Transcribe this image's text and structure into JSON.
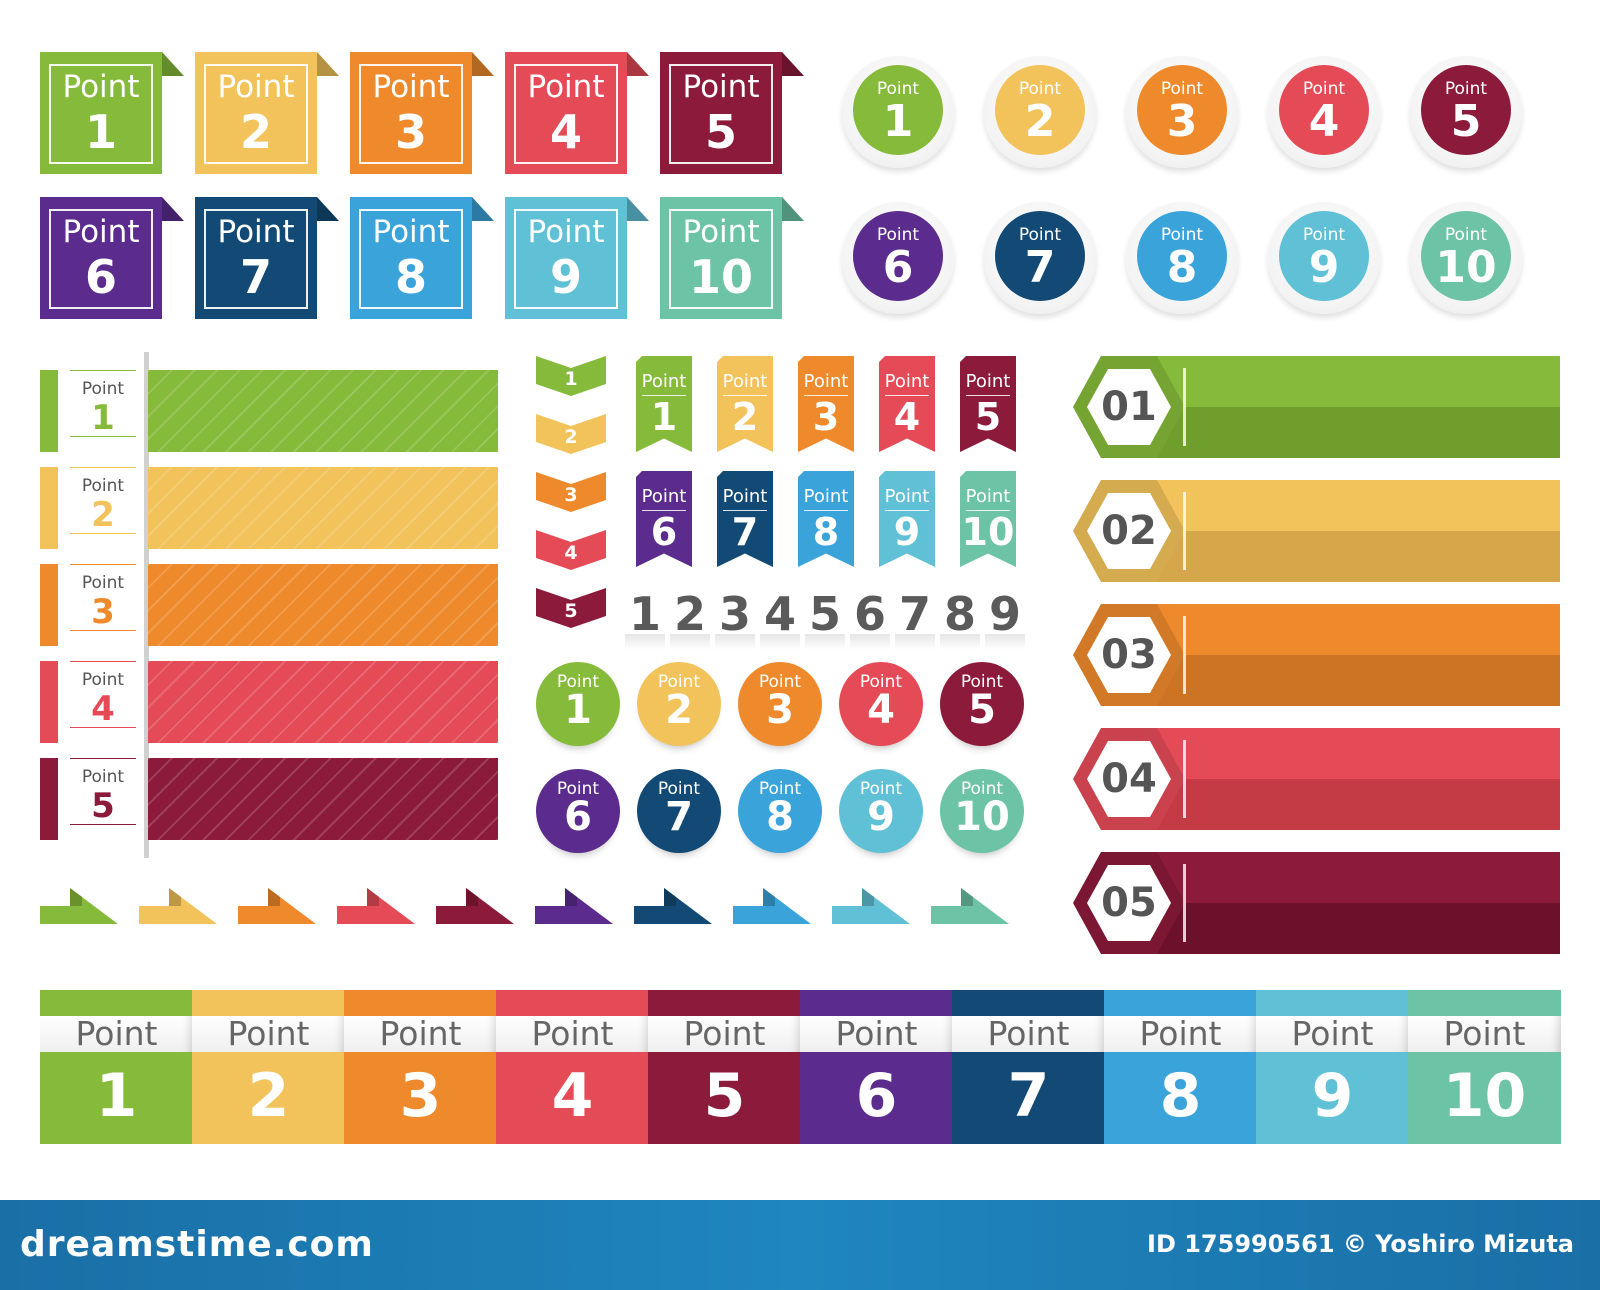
{
  "label_word": "Point",
  "colors": [
    "#86ba3a",
    "#f2c25b",
    "#ee8a2c",
    "#e44b57",
    "#8c1a3a",
    "#5b2c8e",
    "#124a75",
    "#3aa3da",
    "#60c0d6",
    "#6cc3a5"
  ],
  "folded_labels": [
    {
      "word": "Point",
      "num": "1"
    },
    {
      "word": "Point",
      "num": "2"
    },
    {
      "word": "Point",
      "num": "3"
    },
    {
      "word": "Point",
      "num": "4"
    },
    {
      "word": "Point",
      "num": "5"
    },
    {
      "word": "Point",
      "num": "6"
    },
    {
      "word": "Point",
      "num": "7"
    },
    {
      "word": "Point",
      "num": "8"
    },
    {
      "word": "Point",
      "num": "9"
    },
    {
      "word": "Point",
      "num": "10"
    }
  ],
  "ring_circles": [
    {
      "word": "Point",
      "num": "1"
    },
    {
      "word": "Point",
      "num": "2"
    },
    {
      "word": "Point",
      "num": "3"
    },
    {
      "word": "Point",
      "num": "4"
    },
    {
      "word": "Point",
      "num": "5"
    },
    {
      "word": "Point",
      "num": "6"
    },
    {
      "word": "Point",
      "num": "7"
    },
    {
      "word": "Point",
      "num": "8"
    },
    {
      "word": "Point",
      "num": "9"
    },
    {
      "word": "Point",
      "num": "10"
    }
  ],
  "striped_rows": [
    {
      "word": "Point",
      "num": "1"
    },
    {
      "word": "Point",
      "num": "2"
    },
    {
      "word": "Point",
      "num": "3"
    },
    {
      "word": "Point",
      "num": "4"
    },
    {
      "word": "Point",
      "num": "5"
    }
  ],
  "chevrons": [
    "1",
    "2",
    "3",
    "4",
    "5"
  ],
  "ribbons": [
    {
      "word": "Point",
      "num": "1"
    },
    {
      "word": "Point",
      "num": "2"
    },
    {
      "word": "Point",
      "num": "3"
    },
    {
      "word": "Point",
      "num": "4"
    },
    {
      "word": "Point",
      "num": "5"
    },
    {
      "word": "Point",
      "num": "6"
    },
    {
      "word": "Point",
      "num": "7"
    },
    {
      "word": "Point",
      "num": "8"
    },
    {
      "word": "Point",
      "num": "9"
    },
    {
      "word": "Point",
      "num": "10"
    }
  ],
  "gray_digits": [
    "1",
    "2",
    "3",
    "4",
    "5",
    "6",
    "7",
    "8",
    "9"
  ],
  "solid_circles": [
    {
      "word": "Point",
      "num": "1"
    },
    {
      "word": "Point",
      "num": "2"
    },
    {
      "word": "Point",
      "num": "3"
    },
    {
      "word": "Point",
      "num": "4"
    },
    {
      "word": "Point",
      "num": "5"
    },
    {
      "word": "Point",
      "num": "6"
    },
    {
      "word": "Point",
      "num": "7"
    },
    {
      "word": "Point",
      "num": "8"
    },
    {
      "word": "Point",
      "num": "9"
    },
    {
      "word": "Point",
      "num": "10"
    }
  ],
  "hex_bars": [
    {
      "num": "01",
      "top": "#86ba3a",
      "bottom": "#6f9e2c"
    },
    {
      "num": "02",
      "top": "#f2c25b",
      "bottom": "#d6a64a"
    },
    {
      "num": "03",
      "top": "#ee8a2c",
      "bottom": "#cc7424"
    },
    {
      "num": "04",
      "top": "#e44b57",
      "bottom": "#c43b46"
    },
    {
      "num": "05",
      "top": "#8c1a3a",
      "bottom": "#6c102b"
    }
  ],
  "bottom_tiles": [
    {
      "word": "Point",
      "num": "1"
    },
    {
      "word": "Point",
      "num": "2"
    },
    {
      "word": "Point",
      "num": "3"
    },
    {
      "word": "Point",
      "num": "4"
    },
    {
      "word": "Point",
      "num": "5"
    },
    {
      "word": "Point",
      "num": "6"
    },
    {
      "word": "Point",
      "num": "7"
    },
    {
      "word": "Point",
      "num": "8"
    },
    {
      "word": "Point",
      "num": "9"
    },
    {
      "word": "Point",
      "num": "10"
    }
  ],
  "footer": {
    "brand": "dreamstime.com",
    "credit": "ID 175990561 © Yoshiro Mizuta",
    "background": "#1f7fb8"
  }
}
